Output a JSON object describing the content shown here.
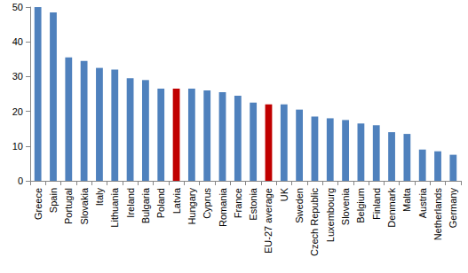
{
  "chart_data": {
    "type": "bar",
    "categories": [
      "Greece",
      "Spain",
      "Portugal",
      "Slovakia",
      "Italy",
      "Lithuania",
      "Ireland",
      "Bulgaria",
      "Poland",
      "Latvia",
      "Hungary",
      "Cyprus",
      "Romania",
      "France",
      "Estonia",
      "EU-27 average",
      "UK",
      "Sweden",
      "Czech Republic",
      "Luxembourg",
      "Slovenia",
      "Belgium",
      "Finland",
      "Denmark",
      "Malta",
      "Austria",
      "Netherlands",
      "Germany"
    ],
    "values": [
      50,
      48.5,
      35.5,
      34.5,
      32.5,
      32,
      29.5,
      29,
      26.5,
      26.5,
      26.5,
      26,
      25.5,
      24.5,
      22.5,
      22,
      22,
      20.5,
      18.5,
      18,
      17.5,
      16.5,
      16,
      14,
      13.5,
      9,
      8.5,
      7.5
    ],
    "colors": [
      "#4f81bd",
      "#4f81bd",
      "#4f81bd",
      "#4f81bd",
      "#4f81bd",
      "#4f81bd",
      "#4f81bd",
      "#4f81bd",
      "#4f81bd",
      "#c00000",
      "#4f81bd",
      "#4f81bd",
      "#4f81bd",
      "#4f81bd",
      "#4f81bd",
      "#c00000",
      "#4f81bd",
      "#4f81bd",
      "#4f81bd",
      "#4f81bd",
      "#4f81bd",
      "#4f81bd",
      "#4f81bd",
      "#4f81bd",
      "#4f81bd",
      "#4f81bd",
      "#4f81bd",
      "#4f81bd"
    ],
    "ylim": [
      0,
      50
    ],
    "yticks": [
      0,
      10,
      20,
      30,
      40,
      50
    ],
    "grid": false
  }
}
